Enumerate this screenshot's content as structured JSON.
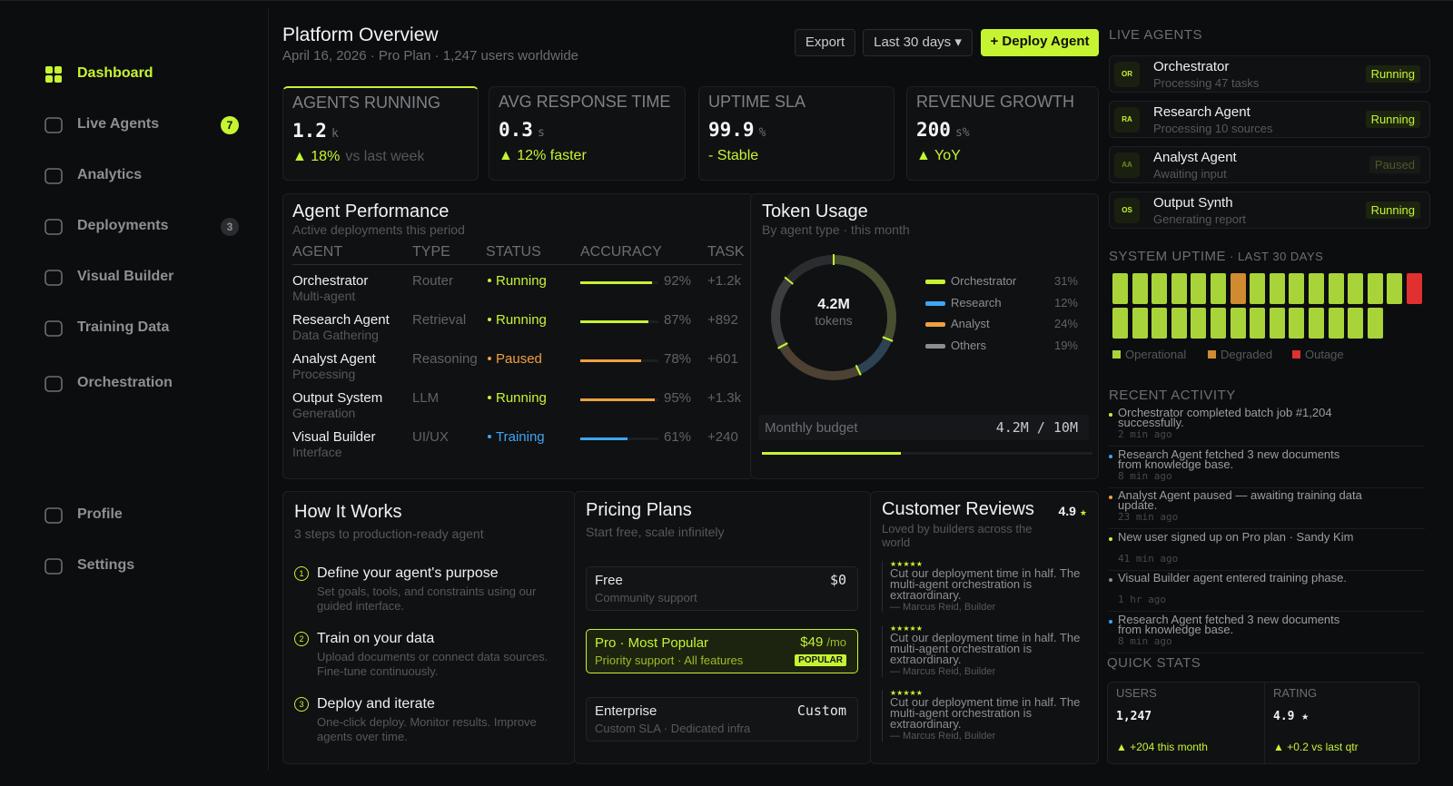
{
  "sidebar": {
    "nav": [
      {
        "label": "Dashboard",
        "active": true
      },
      {
        "label": "Live Agents",
        "badge": 7,
        "badge_color": "#c6f432"
      },
      {
        "label": "Analytics"
      },
      {
        "label": "Deployments",
        "badge": 3,
        "badge_color": "#2a2c30"
      },
      {
        "label": "Visual Builder"
      },
      {
        "label": "Training Data"
      },
      {
        "label": "Orchestration"
      }
    ],
    "footer": [
      {
        "label": "Profile"
      },
      {
        "label": "Settings"
      }
    ]
  },
  "header": {
    "title": "Platform Overview",
    "subtitle": "April 16, 2026 · Pro Plan · 1,247 users worldwide",
    "buttons": [
      "Export",
      "Last 30 days ▾",
      "+ Deploy Agent"
    ]
  },
  "kpis": [
    {
      "label": "AGENTS RUNNING",
      "value": 1.2,
      "unit": "k",
      "delta": "▲ 18%",
      "note": "vs last week"
    },
    {
      "label": "AVG RESPONSE TIME",
      "value": 0.3,
      "unit": "s",
      "delta": "▲ 12% faster"
    },
    {
      "label": "UPTIME SLA",
      "value": 99.9,
      "unit": "%",
      "delta": "- Stable"
    },
    {
      "label": "REVENUE GROWTH",
      "value": 200,
      "unit": "s%",
      "delta": "▲ YoY"
    }
  ],
  "performance": {
    "title": "Agent Performance",
    "subtitle": "Active deployments this period",
    "columns": [
      "AGENT",
      "TYPE",
      "STATUS",
      "ACCURACY",
      "TASK"
    ],
    "rows": [
      {
        "name": "Orchestrator",
        "sub": "Multi-agent",
        "type": "Router",
        "status": "Running",
        "status_color": "#c6f432",
        "accuracy": {
          "value": 92,
          "label": "92%"
        },
        "bar_color": "#c6f432",
        "tasks": "+1.2k"
      },
      {
        "name": "Research Agent",
        "sub": "Data Gathering",
        "type": "Retrieval",
        "status": "Running",
        "status_color": "#c6f432",
        "accuracy": {
          "value": 87,
          "label": "87%"
        },
        "bar_color": "#c6f432",
        "tasks": "+892"
      },
      {
        "name": "Analyst Agent",
        "sub": "Processing",
        "type": "Reasoning",
        "status": "Paused",
        "status_color": "#f0a040",
        "accuracy": {
          "value": 78,
          "label": "78%"
        },
        "bar_color": "#f0a040",
        "tasks": "+601"
      },
      {
        "name": "Output System",
        "sub": "Generation",
        "type": "LLM",
        "status": "Running",
        "status_color": "#c6f432",
        "accuracy": {
          "value": 95,
          "label": "95%"
        },
        "bar_color": "#f0a040",
        "tasks": "+1.3k"
      },
      {
        "name": "Visual Builder",
        "sub": "Interface",
        "type": "UI/UX",
        "status": "Training",
        "status_color": "#3ea6f5",
        "accuracy": {
          "value": 61,
          "label": "61%"
        },
        "bar_color": "#3ea6f5",
        "tasks": "+240"
      }
    ]
  },
  "tokens": {
    "title": "Token Usage",
    "subtitle": "By agent type · this month",
    "center_value": "4.2M",
    "center_label": "tokens",
    "segments": [
      {
        "name": "Orchestrator",
        "value": 31,
        "label": "31%",
        "color": "#c6f432"
      },
      {
        "name": "Research",
        "value": 12,
        "label": "12%",
        "color": "#3ea6f5"
      },
      {
        "name": "Analyst",
        "value": 24,
        "label": "24%",
        "color": "#f0a040"
      },
      {
        "name": "Others",
        "value": 19,
        "label": "19%",
        "color": "#8a8d91"
      }
    ],
    "budget": {
      "label": "Monthly budget",
      "value_label": "4.2M / 10M",
      "used": 4.2,
      "total": 10
    }
  },
  "how_it_works": {
    "title": "How It Works",
    "subtitle": "3 steps to production-ready agent",
    "steps": [
      {
        "n": 1,
        "title": "Define your agent's purpose",
        "desc": "Set goals, tools, and constraints using our guided interface."
      },
      {
        "n": 2,
        "title": "Train on your data",
        "desc": "Upload documents or connect data sources. Fine-tune continuously."
      },
      {
        "n": 3,
        "title": "Deploy and iterate",
        "desc": "One-click deploy. Monitor results. Improve agents over time."
      }
    ]
  },
  "pricing": {
    "title": "Pricing Plans",
    "subtitle": "Start free, scale infinitely",
    "plans": [
      {
        "name": "Free",
        "desc": "Community support",
        "price": "$0"
      },
      {
        "name": "Pro · Most Popular",
        "desc": "Priority support · All features",
        "price": "$49",
        "period": "/mo",
        "badge": "POPULAR",
        "featured": true
      },
      {
        "name": "Enterprise",
        "desc": "Custom SLA · Dedicated infra",
        "price": "Custom"
      }
    ]
  },
  "reviews": {
    "title": "Customer Reviews",
    "rating": "4.9",
    "rating_star": "★",
    "subtitle": "Loved by builders across the world",
    "items": [
      {
        "stars": "★★★★★",
        "text": "Cut our deployment time in half. The multi-agent orchestration is extraordinary.",
        "author": "— Marcus Reid, Builder"
      },
      {
        "stars": "★★★★★",
        "text": "Cut our deployment time in half. The multi-agent orchestration is extraordinary.",
        "author": "— Marcus Reid, Builder"
      },
      {
        "stars": "★★★★★",
        "text": "Cut our deployment time in half. The multi-agent orchestration is extraordinary.",
        "author": "— Marcus Reid, Builder"
      }
    ]
  },
  "live_agents": {
    "title": "LIVE AGENTS",
    "items": [
      {
        "initials": "OR",
        "name": "Orchestrator",
        "sub": "Processing 47 tasks",
        "status": "Running",
        "active": true
      },
      {
        "initials": "RA",
        "name": "Research Agent",
        "sub": "Processing 10 sources",
        "status": "Running",
        "active": true
      },
      {
        "initials": "AA",
        "name": "Analyst Agent",
        "sub": "Awaiting input",
        "status": "Paused",
        "active": false
      },
      {
        "initials": "OS",
        "name": "Output Synth",
        "sub": "Generating report",
        "status": "Running",
        "active": true
      }
    ]
  },
  "uptime": {
    "title": "SYSTEM UPTIME",
    "subtitle": "· LAST 30 DAYS",
    "legend": [
      {
        "name": "Operational",
        "color": "#a8d43a"
      },
      {
        "name": "Degraded",
        "color": "#d08a30"
      },
      {
        "name": "Outage",
        "color": "#e03030"
      }
    ],
    "days": [
      0,
      0,
      0,
      0,
      0,
      0,
      1,
      0,
      0,
      0,
      0,
      0,
      0,
      0,
      0,
      2,
      0,
      0,
      0,
      0,
      0,
      0,
      0,
      0,
      0,
      0,
      0,
      0,
      0,
      0
    ]
  },
  "activity": {
    "title": "RECENT ACTIVITY",
    "items": [
      {
        "text": "Orchestrator completed batch job #1,204 successfully.",
        "time": "2 min ago",
        "color": "#c6f432"
      },
      {
        "text": "Research Agent fetched 3 new documents from knowledge base.",
        "time": "8 min ago",
        "color": "#3ea6f5"
      },
      {
        "text": "Analyst Agent paused — awaiting training data update.",
        "time": "23 min ago",
        "color": "#f0a040"
      },
      {
        "text": "New user signed up on Pro plan · Sandy Kim",
        "time": "41 min ago",
        "color": "#c6f432"
      },
      {
        "text": "Visual Builder agent entered training phase.",
        "time": "1 hr ago",
        "color": "#8a8d91"
      },
      {
        "text": "Research Agent fetched 3 new documents from knowledge base.",
        "time": "8 min ago",
        "color": "#3ea6f5"
      }
    ]
  },
  "quick_stats": {
    "title": "QUICK STATS",
    "items": [
      {
        "label": "USERS",
        "value": "1,247",
        "delta": "▲ +204 this month"
      },
      {
        "label": "RATING",
        "value": "4.9 ★",
        "delta": "▲ +0.2 vs last qtr"
      }
    ]
  }
}
